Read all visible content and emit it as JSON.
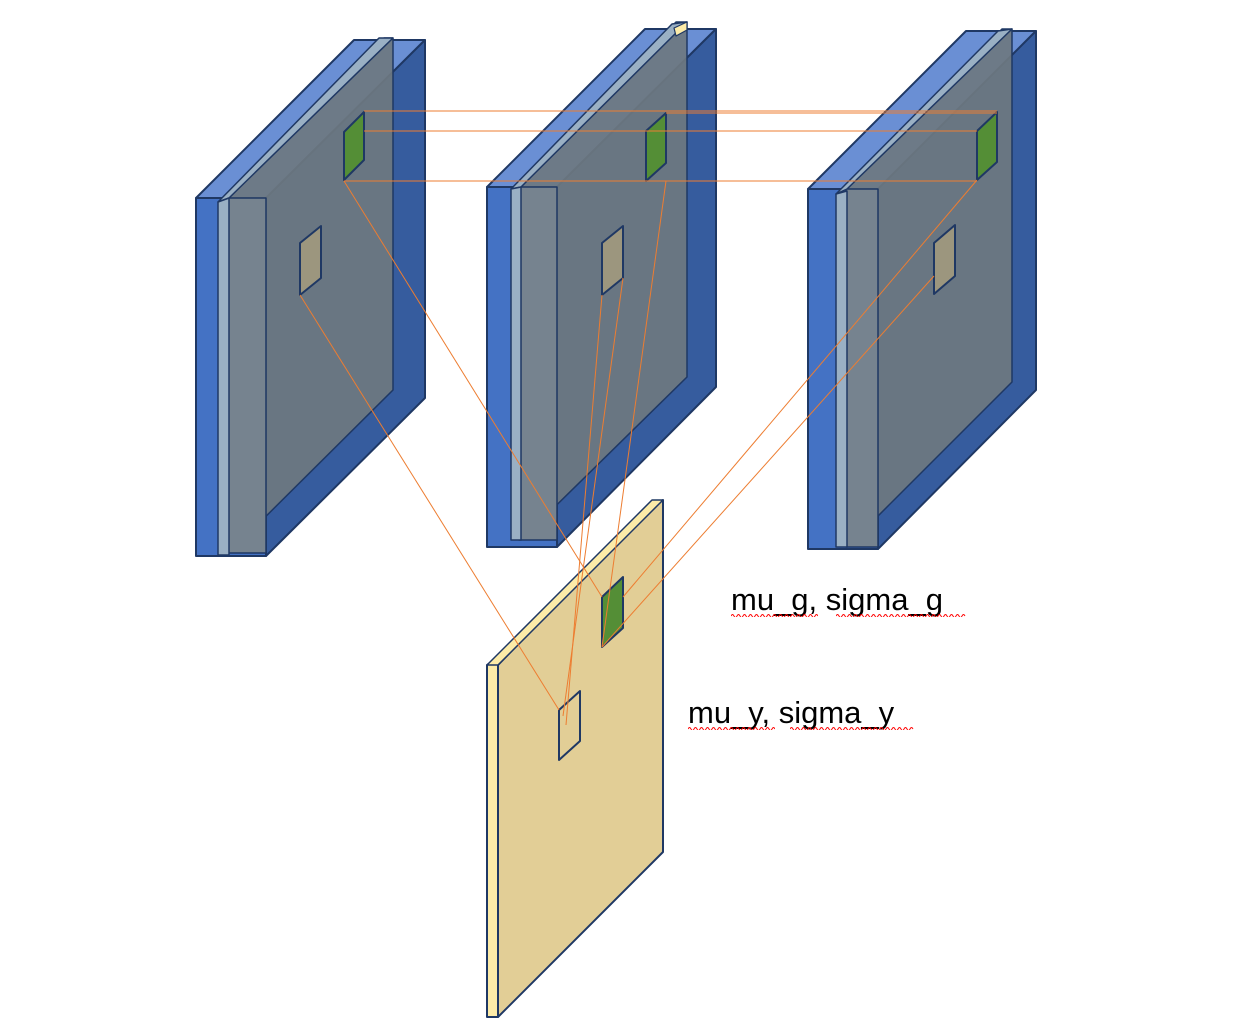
{
  "annotations": {
    "guide_stats": "mu_g, sigma_g",
    "output_stats": "mu_y, sigma_y"
  },
  "colors": {
    "feature_map_blue_front": "#4472C4",
    "feature_map_blue_top": "#6A8FD4",
    "feature_map_blue_side": "#365C9E",
    "feature_map_gray_slab": "#76838F",
    "feature_map_gray_inner": "#6E7880",
    "feature_map_gray_pale": "#9AB0C4",
    "output_map_tan": "#E2CE96",
    "output_map_edge": "#FCEBA8",
    "guide_patch_green": "#548E36",
    "output_patch_tan": "#9C967E",
    "connector_orange": "#ED7D31",
    "outline_navy": "#1F3864",
    "spellcheck_red": "#FF0000"
  },
  "icons": {
    "connector": "straight-line",
    "feature_map": "3d-slab",
    "patch": "parallelogram"
  }
}
